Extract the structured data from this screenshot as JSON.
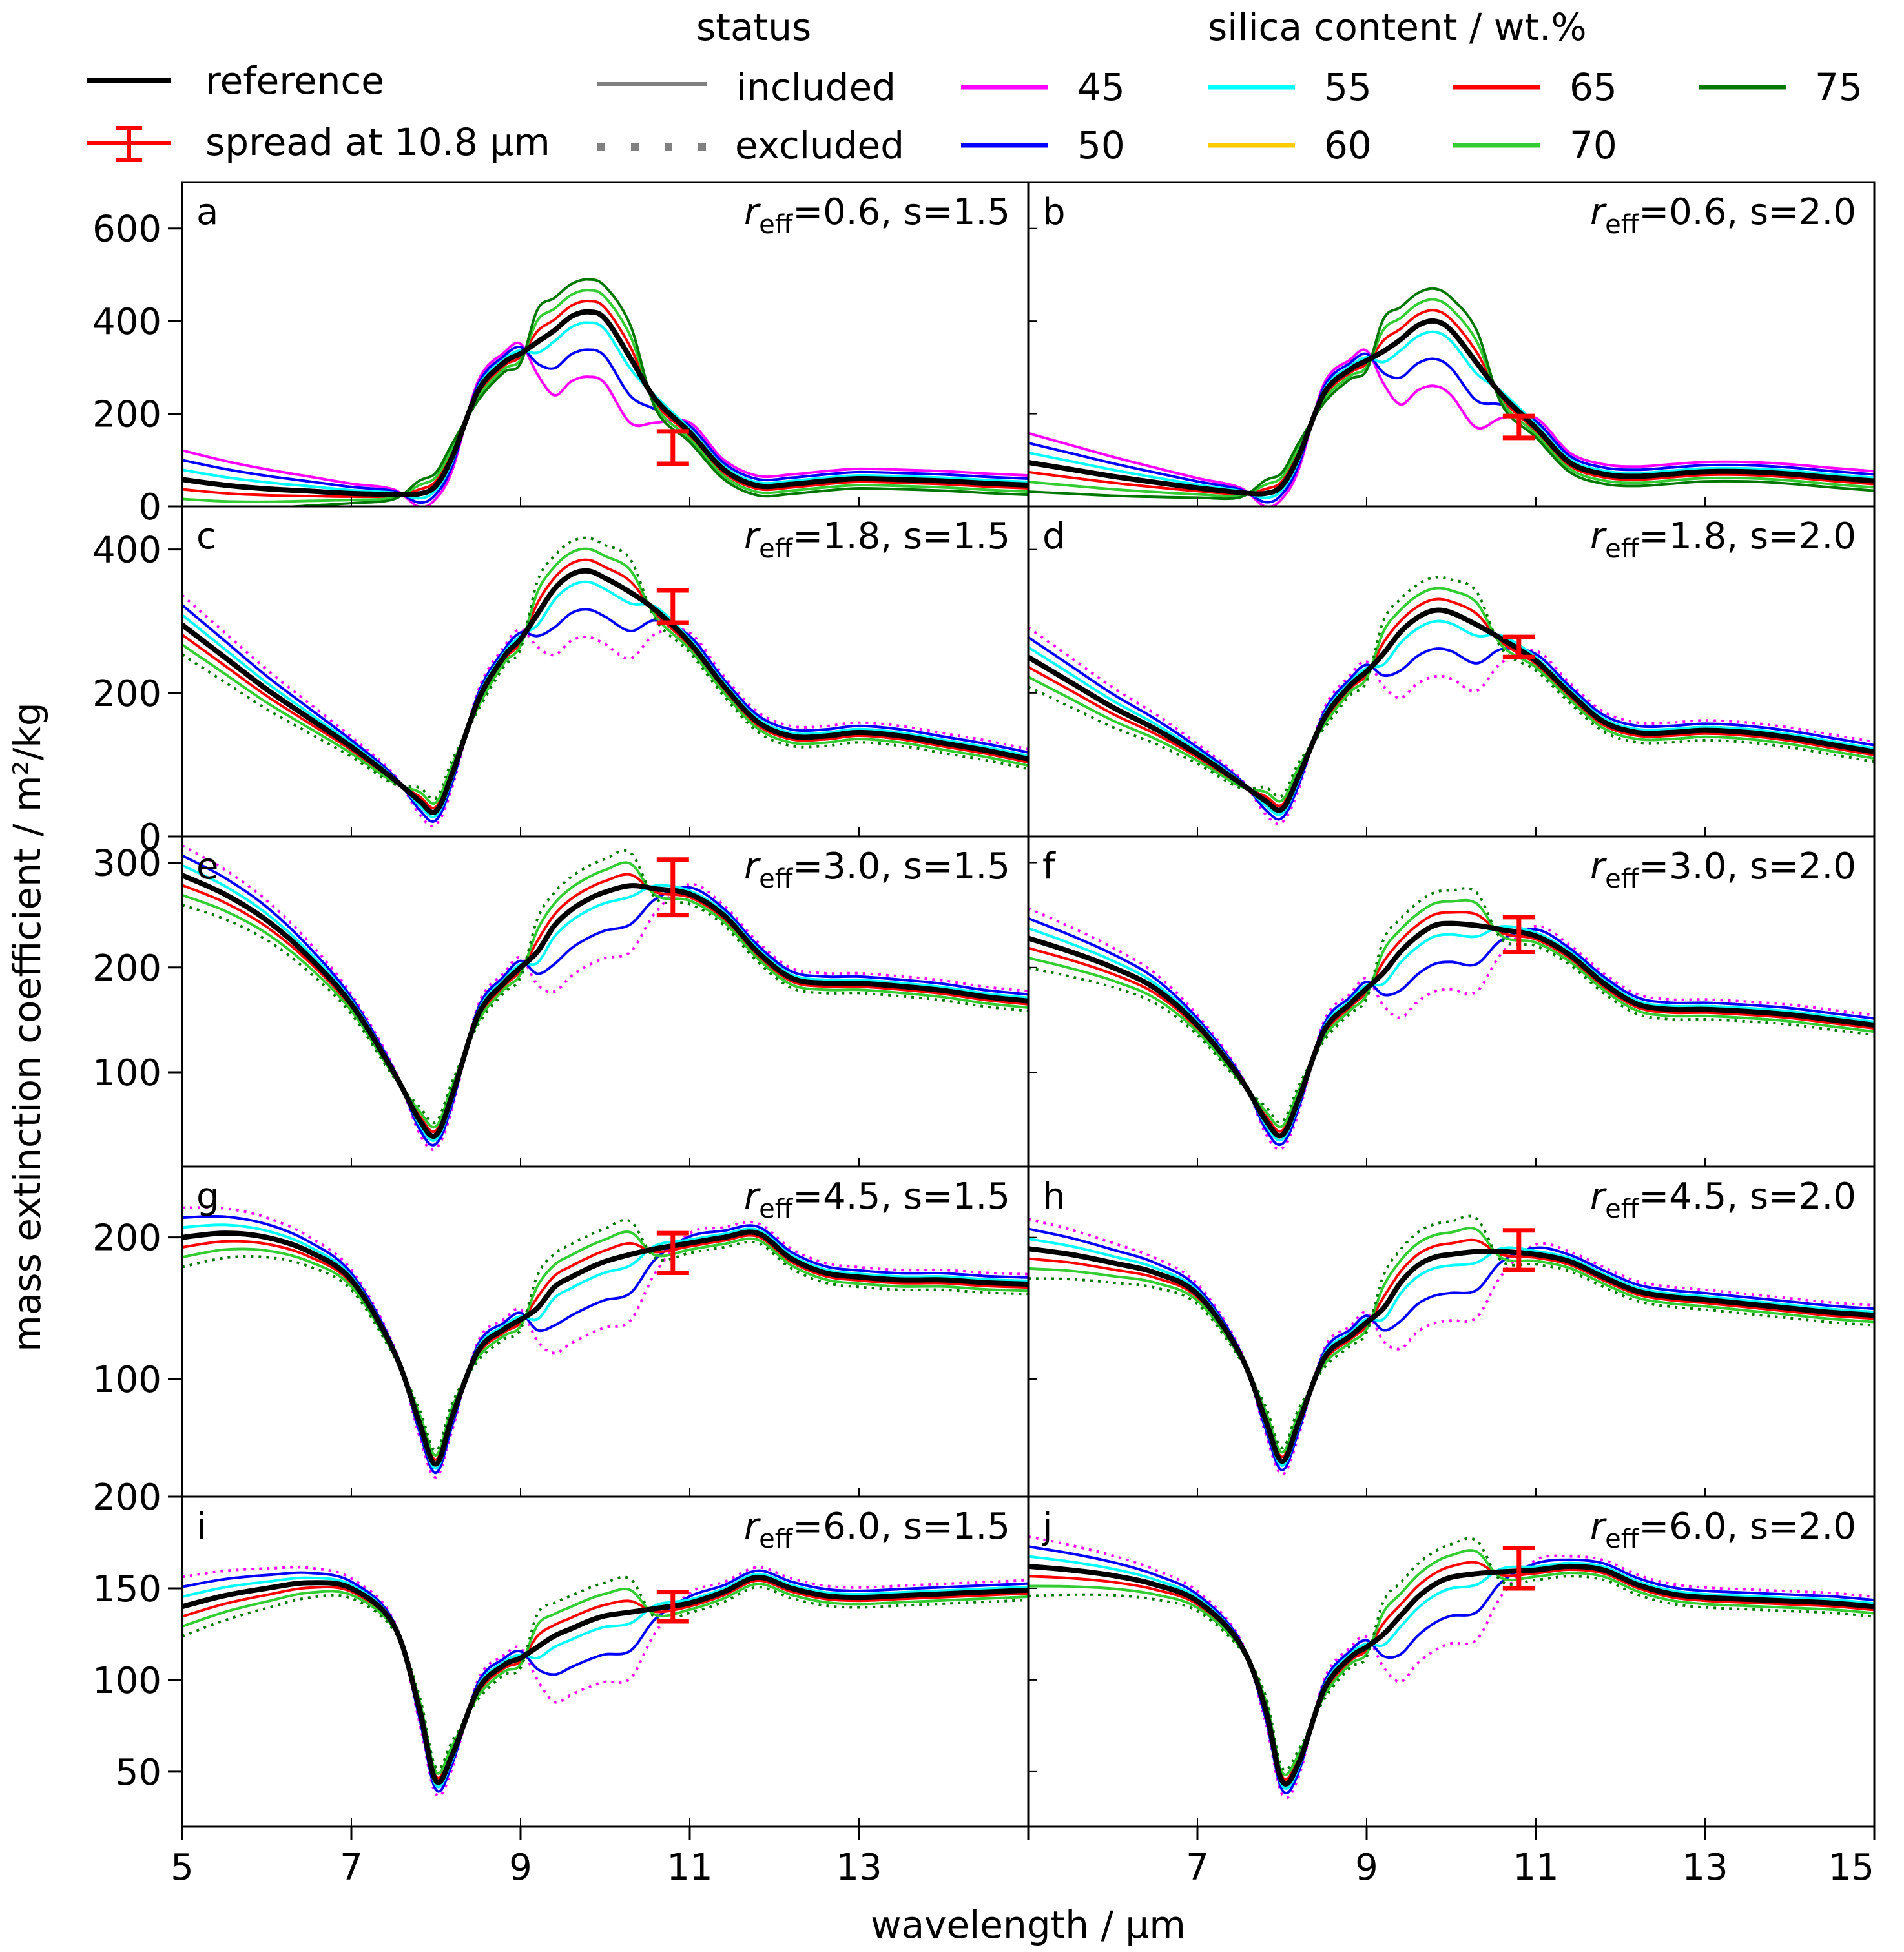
{
  "chart_data": {
    "type": "line",
    "xlabel": "wavelength / μm",
    "ylabel": "mass extinction coefficient / m²/kg",
    "xlim": [
      5,
      15
    ],
    "xticks": [
      "5",
      "7",
      "9",
      "11",
      "13",
      "15"
    ],
    "panel_xticks_left": [
      "5",
      "7",
      "9",
      "11",
      "13"
    ],
    "legend": {
      "reference_label": "reference",
      "spread_label": "spread at 10.8 μm",
      "status_title": "status",
      "status_included": "included",
      "status_excluded": "excluded",
      "silica_title": "silica content / wt.%",
      "silica": [
        {
          "label": "45",
          "color": "#ff00ff"
        },
        {
          "label": "50",
          "color": "#0000ff"
        },
        {
          "label": "55",
          "color": "#00ffff"
        },
        {
          "label": "60",
          "color": "#ffcc00"
        },
        {
          "label": "65",
          "color": "#ff0000"
        },
        {
          "label": "70",
          "color": "#33cc33"
        },
        {
          "label": "75",
          "color": "#007700"
        }
      ]
    },
    "colors": {
      "reference": "#000000",
      "spread": "#ff0000",
      "status": "#808080"
    },
    "x": [
      5,
      5.5,
      6,
      6.5,
      7,
      7.5,
      7.8,
      8,
      8.2,
      8.5,
      8.8,
      9,
      9.2,
      9.4,
      9.6,
      9.8,
      10,
      10.3,
      10.6,
      11,
      11.4,
      11.8,
      12.2,
      12.6,
      13,
      13.5,
      14,
      14.5,
      15
    ],
    "panels": [
      {
        "letter": "a",
        "reff": "0.6",
        "s": "1.5",
        "ylim": [
          0,
          700
        ],
        "yticks": [
          "0",
          "200",
          "400",
          "600"
        ],
        "reference": [
          58,
          46,
          38,
          33,
          28,
          26,
          27,
          45,
          110,
          250,
          310,
          330,
          355,
          380,
          410,
          420,
          405,
          320,
          230,
          160,
          80,
          45,
          48,
          55,
          60,
          58,
          55,
          50,
          46
        ],
        "spread": {
          "x": 10.8,
          "low": 92,
          "high": 162
        }
      },
      {
        "letter": "b",
        "reff": "0.6",
        "s": "2.0",
        "ylim": [
          0,
          700
        ],
        "yticks": [
          "0",
          "200",
          "400",
          "600"
        ],
        "reference": [
          95,
          80,
          65,
          52,
          40,
          30,
          28,
          45,
          110,
          245,
          295,
          315,
          335,
          360,
          390,
          400,
          380,
          310,
          240,
          170,
          95,
          70,
          65,
          70,
          75,
          75,
          70,
          62,
          55
        ],
        "spread": {
          "x": 10.8,
          "low": 148,
          "high": 195
        }
      },
      {
        "letter": "c",
        "reff": "1.8",
        "s": "1.5",
        "ylim": [
          0,
          460
        ],
        "yticks": [
          "0",
          "200",
          "400"
        ],
        "reference": [
          295,
          250,
          205,
          165,
          125,
          80,
          50,
          35,
          90,
          190,
          250,
          275,
          310,
          345,
          365,
          370,
          360,
          340,
          315,
          270,
          210,
          160,
          140,
          140,
          145,
          140,
          130,
          120,
          108
        ],
        "spread": {
          "x": 10.8,
          "low": 298,
          "high": 343
        }
      },
      {
        "letter": "d",
        "reff": "1.8",
        "s": "2.0",
        "ylim": [
          0,
          460
        ],
        "yticks": [
          "0",
          "200",
          "400"
        ],
        "reference": [
          250,
          215,
          180,
          150,
          115,
          75,
          50,
          38,
          85,
          165,
          210,
          230,
          255,
          285,
          305,
          315,
          312,
          295,
          275,
          245,
          200,
          160,
          145,
          145,
          148,
          145,
          138,
          128,
          118
        ],
        "spread": {
          "x": 10.8,
          "low": 250,
          "high": 278
        }
      },
      {
        "letter": "e",
        "reff": "3.0",
        "s": "1.5",
        "ylim": [
          10,
          325
        ],
        "yticks": [
          "100",
          "200",
          "300"
        ],
        "reference": [
          288,
          270,
          245,
          210,
          165,
          100,
          55,
          40,
          80,
          155,
          185,
          200,
          215,
          240,
          255,
          265,
          272,
          278,
          275,
          270,
          250,
          215,
          190,
          185,
          185,
          182,
          178,
          172,
          168
        ],
        "spread": {
          "x": 10.8,
          "low": 250,
          "high": 303
        }
      },
      {
        "letter": "f",
        "reff": "3.0",
        "s": "2.0",
        "ylim": [
          10,
          325
        ],
        "yticks": [
          "100",
          "200",
          "300"
        ],
        "reference": [
          228,
          215,
          200,
          180,
          145,
          95,
          55,
          40,
          75,
          140,
          165,
          180,
          195,
          215,
          230,
          240,
          242,
          240,
          236,
          230,
          212,
          185,
          165,
          160,
          160,
          158,
          155,
          150,
          145
        ],
        "spread": {
          "x": 10.8,
          "low": 215,
          "high": 248
        }
      },
      {
        "letter": "g",
        "reff": "4.5",
        "s": "1.5",
        "ylim": [
          17,
          250
        ],
        "yticks": [
          "100",
          "200"
        ],
        "reference": [
          200,
          203,
          200,
          190,
          170,
          120,
          70,
          40,
          75,
          120,
          135,
          142,
          150,
          165,
          172,
          178,
          183,
          188,
          192,
          196,
          200,
          203,
          185,
          175,
          172,
          170,
          170,
          168,
          167
        ],
        "spread": {
          "x": 10.8,
          "low": 175,
          "high": 203
        }
      },
      {
        "letter": "h",
        "reff": "4.5",
        "s": "2.0",
        "ylim": [
          17,
          250
        ],
        "yticks": [
          "100",
          "200"
        ],
        "reference": [
          192,
          188,
          182,
          175,
          160,
          118,
          72,
          42,
          70,
          115,
          130,
          140,
          150,
          168,
          180,
          186,
          188,
          190,
          190,
          188,
          183,
          172,
          162,
          158,
          156,
          153,
          150,
          147,
          145
        ],
        "spread": {
          "x": 10.8,
          "low": 177,
          "high": 205
        }
      },
      {
        "letter": "i",
        "reff": "6.0",
        "s": "1.5",
        "ylim": [
          20,
          200
        ],
        "yticks": [
          "50",
          "100",
          "150",
          "200"
        ],
        "reference": [
          140,
          146,
          150,
          153,
          150,
          130,
          85,
          45,
          60,
          95,
          108,
          112,
          118,
          124,
          128,
          132,
          135,
          137,
          139,
          142,
          148,
          156,
          150,
          146,
          145,
          146,
          147,
          148,
          149
        ],
        "spread": {
          "x": 10.8,
          "low": 132,
          "high": 148
        }
      },
      {
        "letter": "j",
        "reff": "6.0",
        "s": "2.0",
        "ylim": [
          20,
          200
        ],
        "yticks": [
          "50",
          "100",
          "150",
          "200"
        ],
        "reference": [
          162,
          160,
          157,
          152,
          143,
          120,
          85,
          45,
          55,
          95,
          112,
          118,
          125,
          135,
          145,
          152,
          156,
          158,
          159,
          160,
          162,
          160,
          152,
          147,
          145,
          144,
          143,
          142,
          140
        ],
        "spread": {
          "x": 10.8,
          "low": 150,
          "high": 172
        }
      }
    ]
  }
}
